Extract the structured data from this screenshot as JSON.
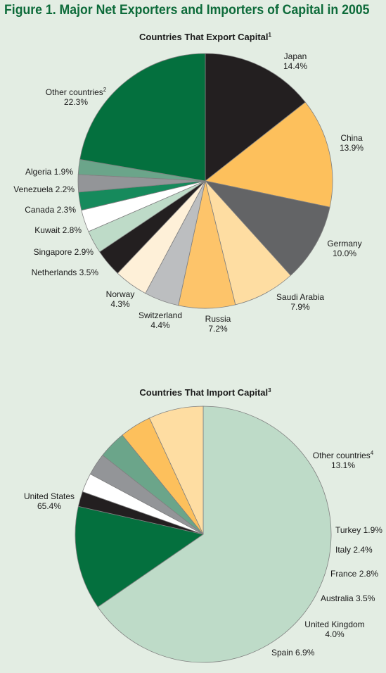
{
  "figure_title": "Figure 1. Major Net Exporters and Importers of Capital in 2005",
  "chart_data": [
    {
      "type": "pie",
      "title": "Countries That Export Capital",
      "title_note": "1",
      "start_angle_deg": 0,
      "direction": "clockwise",
      "slices": [
        {
          "label": "Japan",
          "value": 14.4,
          "value_text": "14.4%",
          "color": "#231f20"
        },
        {
          "label": "China",
          "value": 13.9,
          "value_text": "13.9%",
          "color": "#fdc05c"
        },
        {
          "label": "Germany",
          "value": 10.0,
          "value_text": "10.0%",
          "color": "#636466"
        },
        {
          "label": "Saudi Arabia",
          "value": 7.9,
          "value_text": "7.9%",
          "color": "#fedda2"
        },
        {
          "label": "Russia",
          "value": 7.2,
          "value_text": "7.2%",
          "color": "#fdc46a"
        },
        {
          "label": "Switzerland",
          "value": 4.4,
          "value_text": "4.4%",
          "color": "#bcbec0"
        },
        {
          "label": "Norway",
          "value": 4.3,
          "value_text": "4.3%",
          "color": "#fef0d8"
        },
        {
          "label": "Netherlands",
          "value": 3.5,
          "value_text": "3.5%",
          "color": "#231f20"
        },
        {
          "label": "Singapore",
          "value": 2.9,
          "value_text": "2.9%",
          "color": "#bedbc8"
        },
        {
          "label": "Kuwait",
          "value": 2.8,
          "value_text": "2.8%",
          "color": "#ffffff"
        },
        {
          "label": "Canada",
          "value": 2.3,
          "value_text": "2.3%",
          "color": "#168a5c"
        },
        {
          "label": "Venezuela",
          "value": 2.2,
          "value_text": "2.2%",
          "color": "#939598"
        },
        {
          "label": "Algeria",
          "value": 1.9,
          "value_text": "1.9%",
          "color": "#6ba58a"
        },
        {
          "label": "Other countries",
          "label_note": "2",
          "value": 22.3,
          "value_text": "22.3%",
          "color": "#04703e"
        }
      ]
    },
    {
      "type": "pie",
      "title": "Countries That Import Capital",
      "title_note": "3",
      "start_angle_deg": 0,
      "direction": "clockwise",
      "slices": [
        {
          "label": "United States",
          "value": 65.4,
          "value_text": "65.4%",
          "color": "#bedbc8"
        },
        {
          "label": "Other countries",
          "label_note": "4",
          "value": 13.1,
          "value_text": "13.1%",
          "color": "#04703e"
        },
        {
          "label": "Turkey",
          "value": 1.9,
          "value_text": "1.9%",
          "color": "#231f20"
        },
        {
          "label": "Italy",
          "value": 2.4,
          "value_text": "2.4%",
          "color": "#ffffff"
        },
        {
          "label": "France",
          "value": 2.8,
          "value_text": "2.8%",
          "color": "#939598"
        },
        {
          "label": "Australia",
          "value": 3.5,
          "value_text": "3.5%",
          "color": "#6ba58a"
        },
        {
          "label": "United Kingdom",
          "value": 4.0,
          "value_text": "4.0%",
          "color": "#fdc05c"
        },
        {
          "label": "Spain",
          "value": 6.9,
          "value_text": "6.9%",
          "color": "#fedda2"
        }
      ]
    }
  ]
}
